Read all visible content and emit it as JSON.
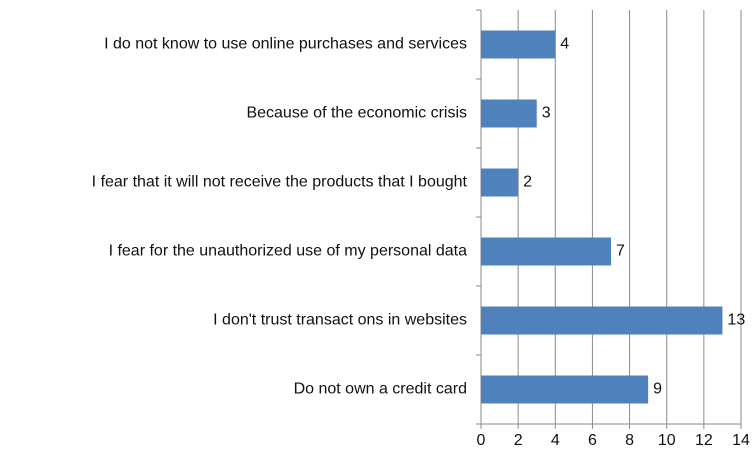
{
  "chart_data": {
    "type": "bar",
    "orientation": "horizontal",
    "categories": [
      "I do not know to use online purchases and services",
      "Because of the economic crisis",
      "I fear that it will not receive the products that I bought",
      "I fear for the unauthorized use of my personal data",
      "I don't trust transact ons in websites",
      "Do not own a credit card"
    ],
    "values": [
      4,
      3,
      2,
      7,
      13,
      9
    ],
    "color": "#4f81bd",
    "xlim": [
      0,
      14
    ],
    "xticks": [
      0,
      2,
      4,
      6,
      8,
      10,
      12,
      14
    ],
    "grid": true
  }
}
